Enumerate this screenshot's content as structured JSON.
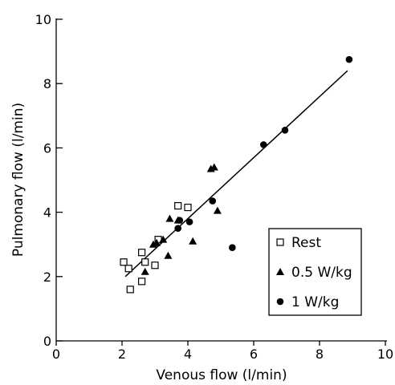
{
  "chart_data": {
    "type": "scatter",
    "title": "",
    "xlabel": "Venous flow (l/min)",
    "ylabel": "Pulmonary flow (l/min)",
    "xlim": [
      0,
      10
    ],
    "ylim": [
      0,
      10
    ],
    "xticks": [
      0,
      2,
      4,
      6,
      8,
      10
    ],
    "yticks": [
      0,
      2,
      4,
      6,
      8,
      10
    ],
    "grid": false,
    "legend_position": "lower-right",
    "series": [
      {
        "name": "Rest",
        "marker": "open-square",
        "points": [
          [
            2.05,
            2.45
          ],
          [
            2.2,
            2.25
          ],
          [
            2.25,
            1.6
          ],
          [
            2.6,
            1.85
          ],
          [
            2.6,
            2.75
          ],
          [
            2.7,
            2.45
          ],
          [
            3.0,
            2.35
          ],
          [
            3.1,
            3.15
          ],
          [
            3.7,
            4.2
          ],
          [
            4.0,
            4.15
          ]
        ]
      },
      {
        "name": "0.5 W/kg",
        "marker": "filled-triangle",
        "points": [
          [
            2.7,
            2.15
          ],
          [
            2.95,
            3.0
          ],
          [
            3.05,
            3.05
          ],
          [
            3.25,
            3.15
          ],
          [
            3.4,
            2.65
          ],
          [
            3.45,
            3.8
          ],
          [
            3.7,
            3.75
          ],
          [
            4.15,
            3.1
          ],
          [
            4.7,
            5.35
          ],
          [
            4.8,
            5.4
          ],
          [
            4.9,
            4.05
          ]
        ]
      },
      {
        "name": "1 W/kg",
        "marker": "filled-circle",
        "points": [
          [
            3.7,
            3.5
          ],
          [
            3.75,
            3.75
          ],
          [
            4.05,
            3.7
          ],
          [
            4.75,
            4.35
          ],
          [
            5.35,
            2.9
          ],
          [
            6.3,
            6.1
          ],
          [
            6.95,
            6.55
          ],
          [
            8.9,
            8.75
          ]
        ]
      }
    ],
    "regression_line": {
      "from": [
        2.1,
        2.0
      ],
      "to": [
        8.85,
        8.4
      ]
    }
  }
}
